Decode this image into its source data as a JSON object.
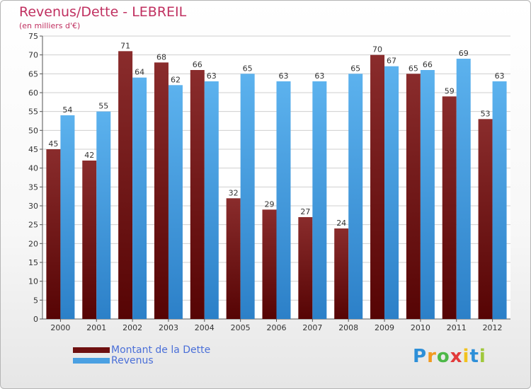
{
  "chart_data": {
    "type": "bar",
    "title": "Revenus/Dette - LEBREIL",
    "subtitle": "(en milliers d'€)",
    "categories": [
      "2000",
      "2001",
      "2002",
      "2003",
      "2004",
      "2005",
      "2006",
      "2007",
      "2008",
      "2009",
      "2010",
      "2011",
      "2012"
    ],
    "series": [
      {
        "name": "Montant de la Dette",
        "color": "#7a1c1c",
        "values": [
          45,
          42,
          71,
          68,
          66,
          32,
          29,
          27,
          24,
          70,
          65,
          59,
          53
        ]
      },
      {
        "name": "Revenus",
        "color": "#4aa0e2",
        "values": [
          54,
          55,
          64,
          62,
          63,
          65,
          63,
          63,
          65,
          67,
          66,
          69,
          63
        ]
      }
    ],
    "ylim": [
      0,
      75
    ],
    "yticks": [
      0,
      5,
      10,
      15,
      20,
      25,
      30,
      35,
      40,
      45,
      50,
      55,
      60,
      65,
      70,
      75
    ],
    "grid": true,
    "legend": "bottom-left"
  },
  "logo": {
    "text": "Proxiti",
    "letters": [
      "P",
      "r",
      "o",
      "x",
      "i",
      "t",
      "i"
    ],
    "colors": [
      "#2d8fd8",
      "#f29a1f",
      "#4db848",
      "#e23a3a",
      "#f2c21f",
      "#2d8fd8",
      "#a0c83c"
    ]
  }
}
